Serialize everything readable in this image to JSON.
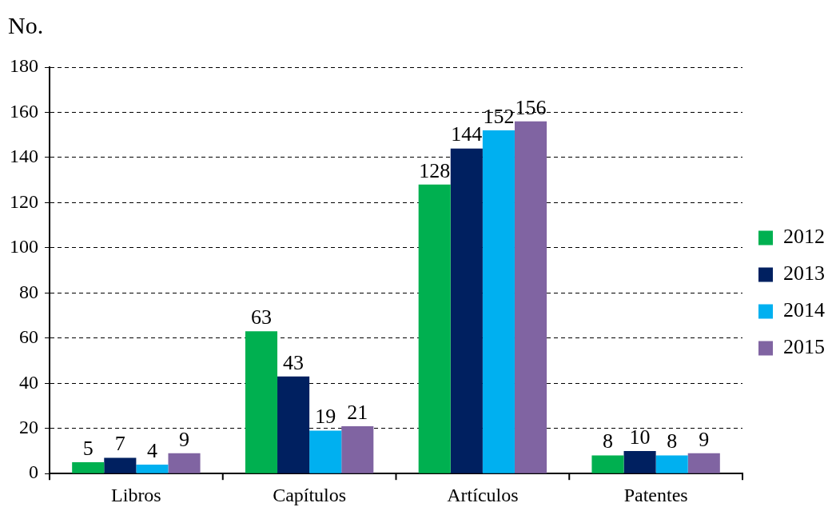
{
  "chart_data": {
    "type": "bar",
    "ylabel": "No.",
    "categories": [
      "Libros",
      "Capítulos",
      "Artículos",
      "Patentes"
    ],
    "series": [
      {
        "name": "2012",
        "color": "#00b050",
        "values": [
          5,
          63,
          128,
          8
        ]
      },
      {
        "name": "2013",
        "color": "#002060",
        "values": [
          7,
          43,
          144,
          10
        ]
      },
      {
        "name": "2014",
        "color": "#00b0f0",
        "values": [
          4,
          19,
          152,
          8
        ]
      },
      {
        "name": "2015",
        "color": "#8064a2",
        "values": [
          9,
          21,
          156,
          9
        ]
      }
    ],
    "ylim": [
      0,
      180
    ],
    "yticks": [
      0,
      20,
      40,
      60,
      80,
      100,
      120,
      140,
      160,
      180
    ],
    "grid": "y",
    "legend": "right",
    "data_labels": true
  }
}
